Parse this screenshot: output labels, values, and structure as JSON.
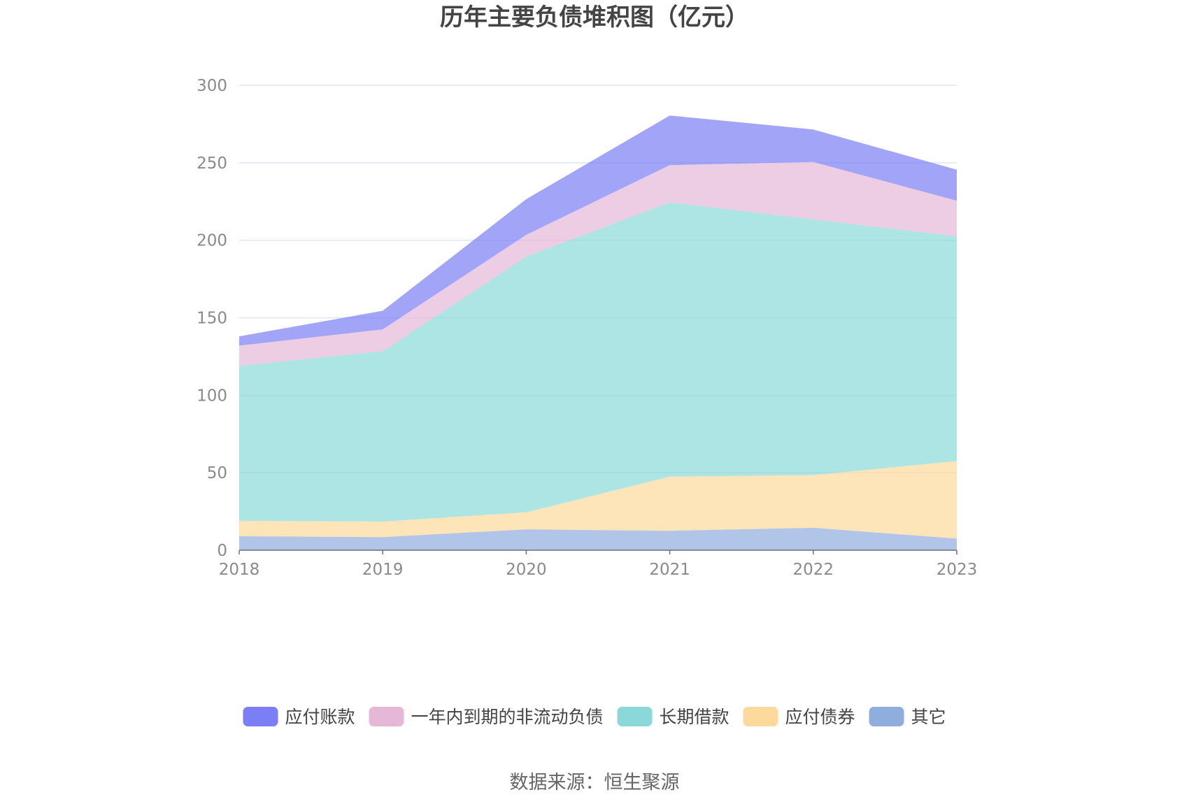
{
  "chart_data": {
    "type": "area",
    "stacked": true,
    "title": "历年主要负债堆积图（亿元）",
    "xlabel": "",
    "ylabel": "",
    "x": [
      "2018",
      "2019",
      "2020",
      "2021",
      "2022",
      "2023"
    ],
    "ylim": [
      0,
      300
    ],
    "yticks": [
      "0",
      "50",
      "100",
      "150",
      "200",
      "250",
      "300"
    ],
    "grid": true,
    "legend_position": "bottom",
    "series": [
      {
        "name": "其它",
        "color": "#8faddd",
        "values": [
          9,
          8.5,
          13.5,
          12.5,
          14.5,
          7.5
        ]
      },
      {
        "name": "应付债券",
        "color": "#fdd99b",
        "values": [
          10,
          10,
          11,
          35,
          34,
          50
        ]
      },
      {
        "name": "长期借款",
        "color": "#8ad8d8",
        "values": [
          100,
          110,
          165,
          177,
          165,
          145
        ]
      },
      {
        "name": "一年内到期的非流动负债",
        "color": "#e6b8d8",
        "values": [
          13,
          14,
          14,
          24,
          37,
          23
        ]
      },
      {
        "name": "应付账款",
        "color": "#7b7ef5",
        "values": [
          6,
          12,
          23,
          32,
          21,
          20
        ]
      }
    ],
    "legend_order": [
      "应付账款",
      "一年内到期的非流动负债",
      "长期借款",
      "应付债券",
      "其它"
    ],
    "source": "数据来源：恒生聚源"
  }
}
